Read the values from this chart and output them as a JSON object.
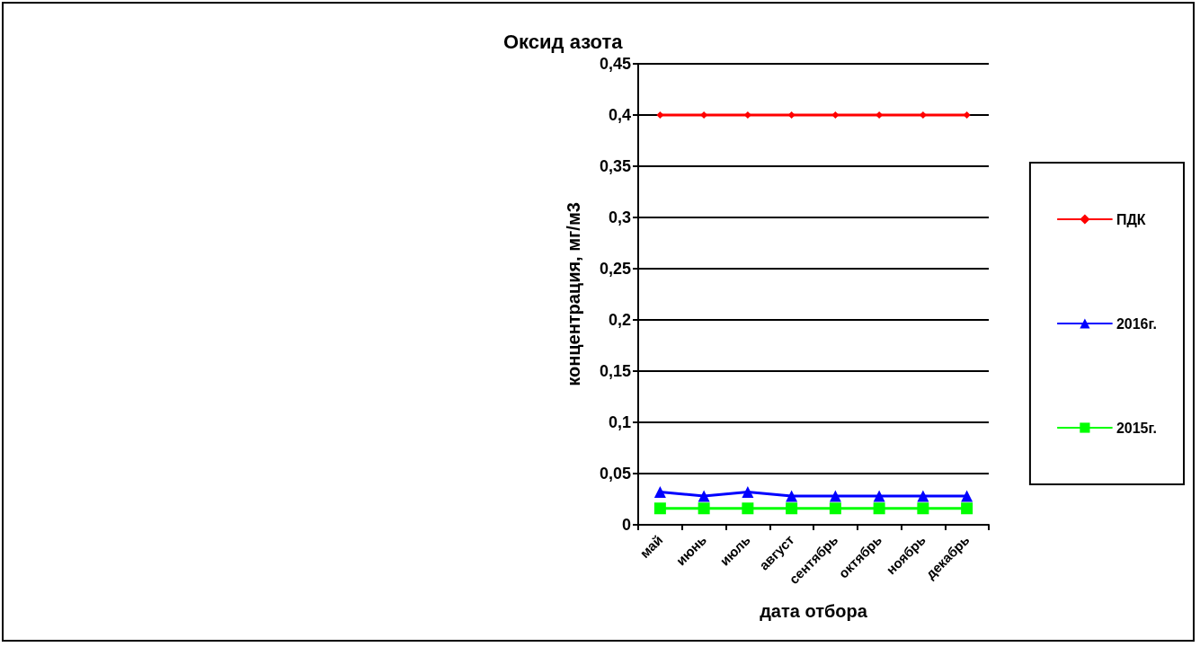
{
  "chart_data": {
    "type": "line",
    "title": "Оксид азота",
    "xlabel": "дата отбора",
    "ylabel": "концентрация, мг/м3",
    "categories": [
      "май",
      "июнь",
      "июль",
      "август",
      "сентябрь",
      "октябрь",
      "ноябрь",
      "декабрь"
    ],
    "series": [
      {
        "name": "ПДК",
        "color": "#ff0000",
        "marker": "diamond",
        "values": [
          0.4,
          0.4,
          0.4,
          0.4,
          0.4,
          0.4,
          0.4,
          0.4
        ]
      },
      {
        "name": "2016г.",
        "color": "#0000ff",
        "marker": "triangle",
        "values": [
          0.032,
          0.028,
          0.032,
          0.028,
          0.028,
          0.028,
          0.028,
          0.028
        ]
      },
      {
        "name": "2015г.",
        "color": "#00ff00",
        "marker": "square",
        "values": [
          0.016,
          0.016,
          0.016,
          0.016,
          0.016,
          0.016,
          0.016,
          0.016
        ]
      }
    ],
    "ylim": [
      0,
      0.45
    ],
    "yticks": [
      0,
      {
        "value": 0.05,
        "label": "0,05"
      },
      {
        "value": 0.1,
        "label": "0,1"
      },
      {
        "value": 0.15,
        "label": "0,15"
      },
      {
        "value": 0.2,
        "label": "0,2"
      },
      {
        "value": 0.25,
        "label": "0,25"
      },
      {
        "value": 0.3,
        "label": "0,3"
      },
      {
        "value": 0.35,
        "label": "0,35"
      },
      {
        "value": 0.4,
        "label": "0,4"
      },
      {
        "value": 0.45,
        "label": "0,45"
      }
    ],
    "grid": "y",
    "legend": "right",
    "line_style": "solid"
  }
}
